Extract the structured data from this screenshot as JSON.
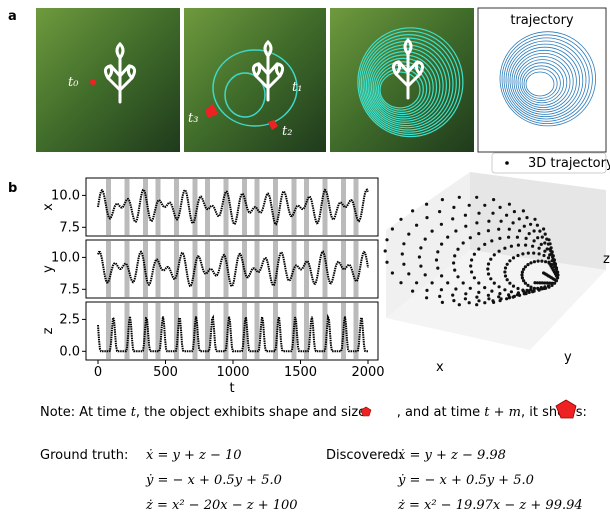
{
  "panel_a": {
    "label": "a",
    "time_labels": [
      "t₀",
      "t₁",
      "t₂",
      "t₃"
    ],
    "trajectory_title": "trajectory"
  },
  "panel_b": {
    "label": "b",
    "legend": "3D trajectory",
    "subplots": [
      {
        "axis_label": "x",
        "ticks": [
          "10.0",
          "7.5"
        ]
      },
      {
        "axis_label": "y",
        "ticks": [
          "10.0",
          "7.5"
        ]
      },
      {
        "axis_label": "z",
        "ticks": [
          "2.5",
          "0.0"
        ]
      }
    ],
    "x_ticks": [
      "0",
      "500",
      "1000",
      "1500",
      "2000"
    ],
    "x_label": "t",
    "axes_3d": [
      "x",
      "y",
      "z"
    ]
  },
  "note": {
    "parts": [
      "Note:  At time ",
      "t",
      ", the object exhibits shape and size: ",
      ", and at time ",
      "t + m",
      ", it shows:"
    ]
  },
  "ground_truth": {
    "label": "Ground truth:",
    "equations": [
      "ẋ = y + z − 10",
      "ẏ = − x + 0.5y + 5.0",
      "ż = x² − 20x − z + 100"
    ]
  },
  "discovered": {
    "label": "Discovered:",
    "equations": [
      "ẋ = y + z − 9.98",
      "ẏ = − x + 0.5y + 5.0",
      "ż = x² − 19.97x − z + 99.94"
    ]
  }
}
